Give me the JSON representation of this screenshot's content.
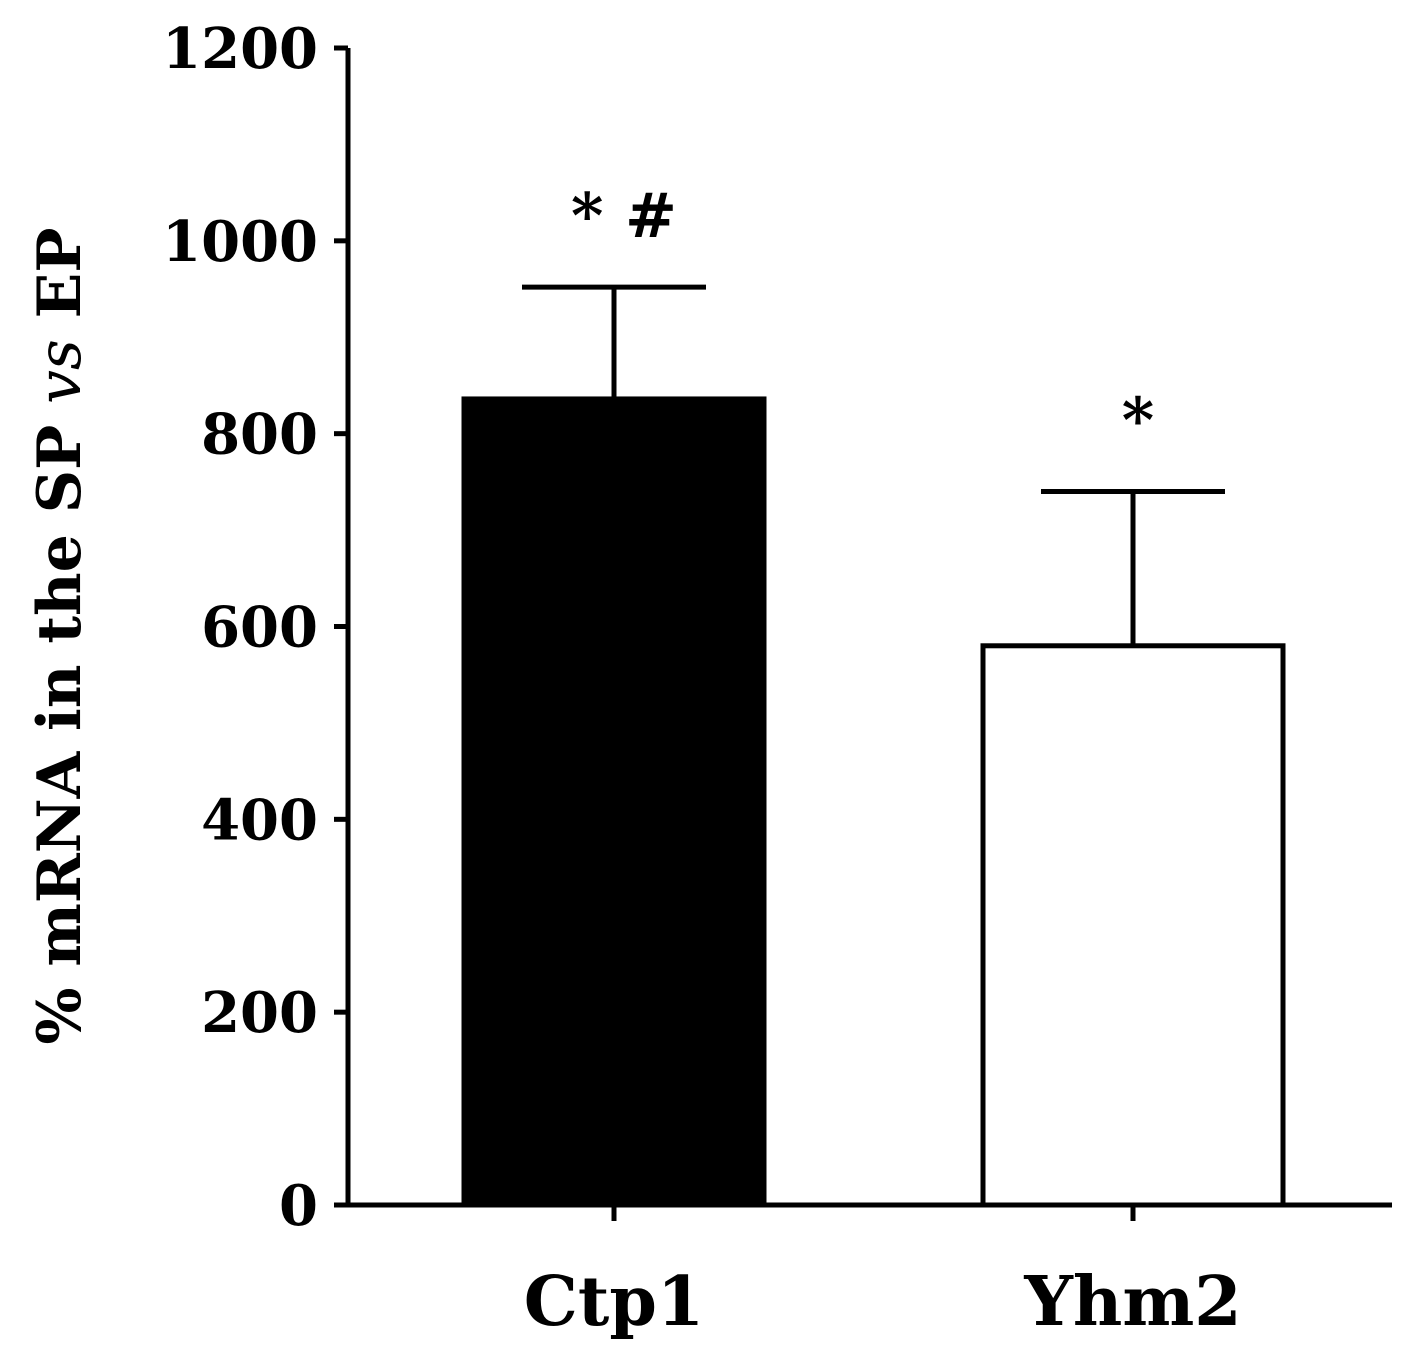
{
  "chart_data": {
    "type": "bar",
    "categories": [
      "Ctp1",
      "Yhm2"
    ],
    "values": [
      836,
      580
    ],
    "error_upper": [
      952,
      740
    ],
    "annotations": [
      "* #",
      "*"
    ],
    "bar_colors": [
      "#000000",
      "#ffffff"
    ],
    "ylabel": "% mRNA in the SP vs EP",
    "ylabel_parts": {
      "pre": "% mRNA in the SP ",
      "italic": "vs",
      "post": " EP"
    },
    "ylim": [
      0,
      1200
    ],
    "yticks": [
      0,
      200,
      400,
      600,
      800,
      1000,
      1200
    ],
    "grid": false
  }
}
